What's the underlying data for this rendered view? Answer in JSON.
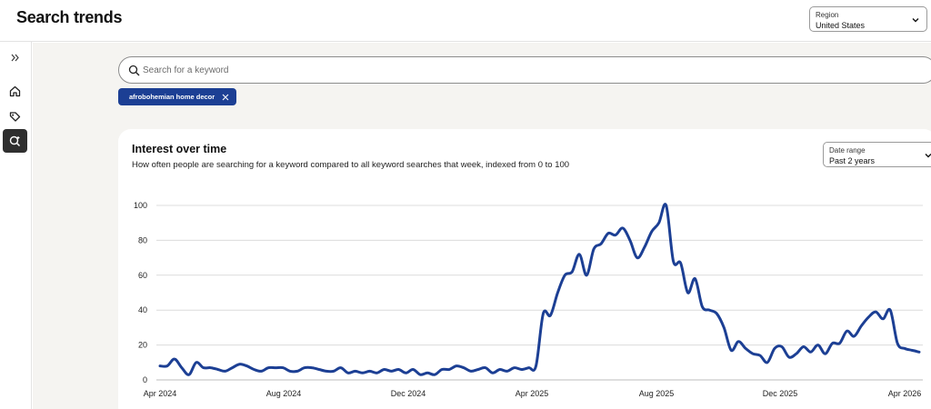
{
  "app": {
    "title": "Search trends"
  },
  "region": {
    "label": "Region",
    "value": "United States"
  },
  "search": {
    "placeholder": "Search for a keyword",
    "value": ""
  },
  "chips": [
    {
      "label": "afrobohemian home decor"
    }
  ],
  "card": {
    "title": "Interest over time",
    "subtitle": "How often people are searching for a keyword compared to all keyword searches that week, indexed from 0 to 100",
    "date_range": {
      "label": "Date range",
      "value": "Past 2 years"
    }
  },
  "colors": {
    "line": "#1c3f94",
    "chip": "#1c3f94",
    "active_nav": "#2f2f2f"
  },
  "icons": [
    "expand-sidebar-icon",
    "home-icon",
    "tag-icon",
    "search-trends-icon",
    "search-icon",
    "close-icon",
    "chevron-down-icon"
  ],
  "chart_data": {
    "type": "line",
    "title": "",
    "xlabel": "",
    "ylabel": "",
    "ylim": [
      0,
      100
    ],
    "yticks": [
      0,
      20,
      40,
      60,
      80,
      100
    ],
    "grid": true,
    "x_start": "Apr 2024",
    "x_end": "Apr 2026",
    "xtick_labels": [
      "Apr 2024",
      "Aug 2024",
      "Dec 2024",
      "Apr 2025",
      "Aug 2025",
      "Dec 2025",
      "Apr 2026"
    ],
    "series": [
      {
        "name": "",
        "values": [
          8,
          8,
          12,
          7,
          3,
          10,
          7,
          7,
          6,
          5,
          7,
          9,
          8,
          6,
          5,
          7,
          7,
          7,
          5,
          5,
          7,
          7,
          6,
          5,
          5,
          7,
          4,
          5,
          4,
          5,
          4,
          6,
          5,
          6,
          4,
          6,
          3,
          4,
          3,
          6,
          6,
          8,
          7,
          5,
          6,
          7,
          4,
          6,
          5,
          7,
          6,
          7,
          8,
          38,
          37,
          50,
          60,
          62,
          72,
          60,
          75,
          78,
          84,
          83,
          87,
          80,
          70,
          76,
          85,
          90,
          100,
          68,
          67,
          50,
          58,
          42,
          40,
          38,
          30,
          17,
          22,
          18,
          15,
          14,
          10,
          18,
          19,
          13,
          15,
          19,
          16,
          20,
          15,
          21,
          21,
          28,
          25,
          31,
          36,
          39,
          35,
          40,
          21,
          18,
          17,
          16
        ]
      }
    ]
  }
}
